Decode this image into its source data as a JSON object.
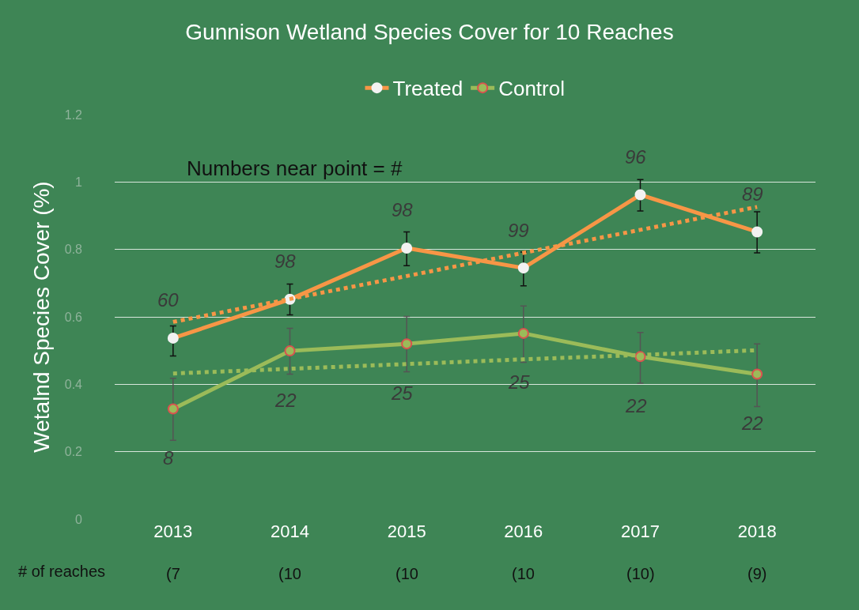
{
  "chart_data": {
    "type": "line",
    "title": "Gunnison Wetland Species Cover for 10 Reaches",
    "ylabel": "Wetalnd Species Cover (%)",
    "categories": [
      "2013",
      "2014",
      "2015",
      "2016",
      "2017",
      "2018"
    ],
    "series": [
      {
        "name": "Treated",
        "color": "#f79646",
        "values": [
          0.537,
          0.652,
          0.804,
          0.745,
          0.962,
          0.852
        ],
        "errors": [
          [
            0.484,
            0.573
          ],
          [
            0.606,
            0.697
          ],
          [
            0.752,
            0.852
          ],
          [
            0.692,
            0.792
          ],
          [
            0.914,
            1.007
          ],
          [
            0.79,
            0.912
          ]
        ],
        "marker": "circle",
        "line_style": "solid"
      },
      {
        "name": "Control",
        "color": "#9bbb59",
        "values": [
          0.327,
          0.499,
          0.52,
          0.551,
          0.482,
          0.43
        ],
        "errors": [
          [
            0.234,
            0.418
          ],
          [
            0.43,
            0.566
          ],
          [
            0.437,
            0.601
          ],
          [
            0.465,
            0.632
          ],
          [
            0.403,
            0.554
          ],
          [
            0.334,
            0.52
          ]
        ],
        "marker": "circle",
        "line_style": "solid"
      },
      {
        "color": "#f79646",
        "values": [
          0.585,
          0.653,
          0.721,
          0.79,
          0.858,
          0.926
        ],
        "marker": "none",
        "line_style": "dotted"
      },
      {
        "color": "#9bbb59",
        "values": [
          0.432,
          0.446,
          0.46,
          0.474,
          0.487,
          0.501
        ],
        "marker": "none",
        "line_style": "dotted"
      }
    ],
    "ylim": [
      0,
      1.2
    ],
    "yticks": [
      0,
      0.2,
      0.4,
      0.6,
      0.8,
      1,
      1.2
    ],
    "grid": "y",
    "legend": "top",
    "annotations": [
      "Numbers near point = #",
      "# of reaches",
      "60",
      "98",
      "98",
      "99",
      "96",
      "89",
      "8",
      "22",
      "25",
      "25",
      "22",
      "22",
      "(7",
      "(10",
      "(10",
      "(10",
      "(10)",
      "(9)"
    ]
  }
}
